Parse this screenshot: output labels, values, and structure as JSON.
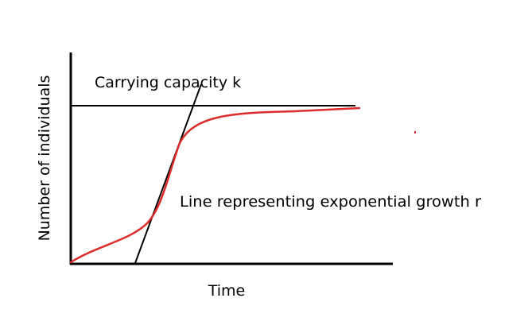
{
  "diagram": {
    "labels": {
      "carrying_capacity": "Carrying capacity k",
      "exponential_growth": "Line representing exponential growth r",
      "x_axis": "Time",
      "y_axis": "Number of individuals"
    },
    "colors": {
      "background": "#ffffff",
      "axes": "#000000",
      "capacity_line": "#000000",
      "tangent_line": "#000000",
      "growth_curve": "#dd2a2a",
      "stray_mark": "#dd2a2a"
    }
  }
}
